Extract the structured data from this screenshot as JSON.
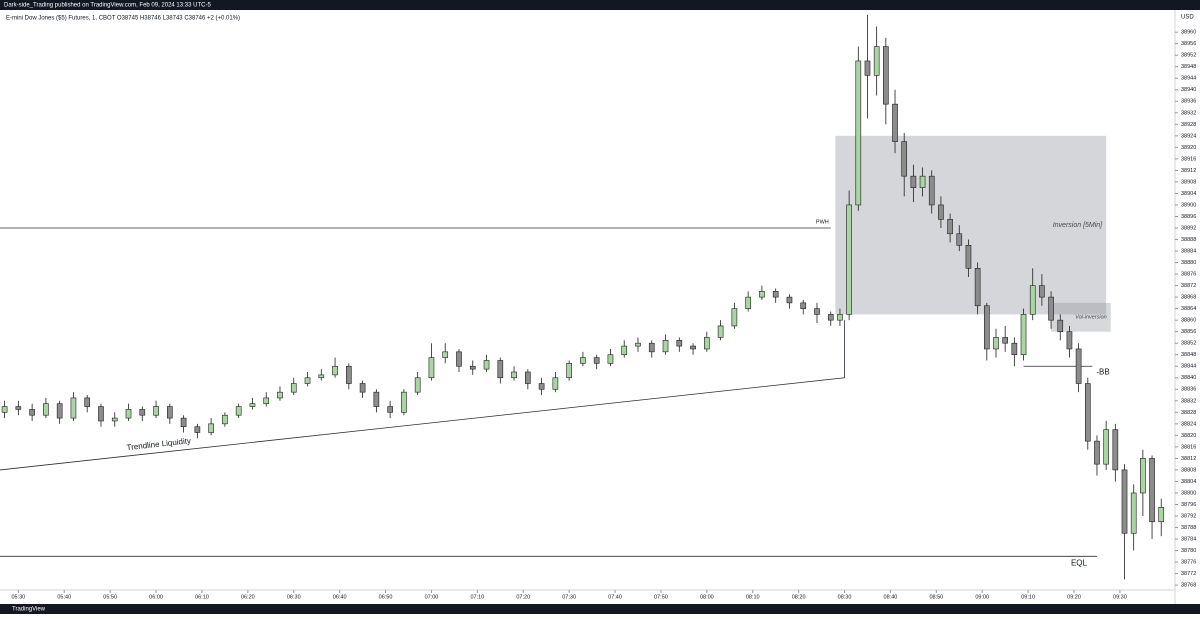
{
  "header": {
    "publisher": "Dark-side_Trading published on TradingView.com, Feb 09, 2024 13:33 UTC-5",
    "symbol": "E-mini Dow Jones ($5) Futures, 1, CBOT  O38745  H38746  L38743  C38746  +2 (+0.01%)",
    "currency": "USD"
  },
  "footer": {
    "brand": "TradingView"
  },
  "chart_data": {
    "type": "candlestick",
    "up_color": "#a8d5a2",
    "down_color": "#8c8c8c",
    "outline_color": "#1e1e1e",
    "xlim": [
      "05:26",
      "09:42"
    ],
    "ylim": [
      38767,
      38967
    ],
    "xticks": [
      "05:30",
      "05:40",
      "05:50",
      "06:00",
      "06:10",
      "06:20",
      "06:30",
      "06:40",
      "06:50",
      "07:00",
      "07:10",
      "07:20",
      "07:30",
      "07:40",
      "07:50",
      "08:00",
      "08:10",
      "08:20",
      "08:30",
      "08:40",
      "08:50",
      "09:00",
      "09:10",
      "09:20",
      "09:30"
    ],
    "yticks": [
      38768,
      38772,
      38776,
      38780,
      38784,
      38788,
      38792,
      38796,
      38800,
      38804,
      38808,
      38812,
      38816,
      38820,
      38824,
      38828,
      38832,
      38836,
      38840,
      38844,
      38848,
      38852,
      38856,
      38860,
      38864,
      38868,
      38872,
      38876,
      38880,
      38884,
      38888,
      38892,
      38896,
      38900,
      38904,
      38908,
      38912,
      38916,
      38920,
      38924,
      38928,
      38932,
      38936,
      38940,
      38944,
      38948,
      38952,
      38956,
      38960
    ],
    "x": [
      "05:27",
      "05:30",
      "05:33",
      "05:36",
      "05:39",
      "05:42",
      "05:45",
      "05:48",
      "05:51",
      "05:54",
      "05:57",
      "06:00",
      "06:03",
      "06:06",
      "06:09",
      "06:12",
      "06:15",
      "06:18",
      "06:21",
      "06:24",
      "06:27",
      "06:30",
      "06:33",
      "06:36",
      "06:39",
      "06:42",
      "06:45",
      "06:48",
      "06:51",
      "06:54",
      "06:57",
      "07:00",
      "07:03",
      "07:06",
      "07:09",
      "07:12",
      "07:15",
      "07:18",
      "07:21",
      "07:24",
      "07:27",
      "07:30",
      "07:33",
      "07:36",
      "07:39",
      "07:42",
      "07:45",
      "07:48",
      "07:51",
      "07:54",
      "07:57",
      "08:00",
      "08:03",
      "08:06",
      "08:09",
      "08:12",
      "08:15",
      "08:18",
      "08:21",
      "08:24",
      "08:27",
      "08:29",
      "08:31",
      "08:33",
      "08:35",
      "08:37",
      "08:39",
      "08:41",
      "08:43",
      "08:45",
      "08:47",
      "08:49",
      "08:51",
      "08:53",
      "08:55",
      "08:57",
      "08:59",
      "09:01",
      "09:03",
      "09:05",
      "09:07",
      "09:09",
      "09:11",
      "09:13",
      "09:15",
      "09:17",
      "09:19",
      "09:21",
      "09:23",
      "09:25",
      "09:27",
      "09:29",
      "09:31",
      "09:33",
      "09:35",
      "09:37",
      "09:39"
    ],
    "open": [
      38828,
      38830,
      38829,
      38827,
      38831,
      38826,
      38833,
      38830,
      38825,
      38826,
      38829,
      38827,
      38830,
      38826,
      38823,
      38821,
      38824,
      38827,
      38830,
      38831,
      38833,
      38835,
      38838,
      38840,
      38841,
      38844,
      38838,
      38835,
      38830,
      38828,
      38835,
      38840,
      38847,
      38849,
      38844,
      38843,
      38846,
      38840,
      38842,
      38838,
      38836,
      38840,
      38845,
      38847,
      38845,
      38848,
      38851,
      38852,
      38849,
      38853,
      38851,
      38850,
      38854,
      38858,
      38864,
      38868,
      38870,
      38868,
      38866,
      38864,
      38862,
      38860,
      38862,
      38900,
      38950,
      38945,
      38955,
      38935,
      38922,
      38910,
      38906,
      38910,
      38900,
      38895,
      38890,
      38886,
      38878,
      38865,
      38850,
      38854,
      38852,
      38848,
      38862,
      38872,
      38868,
      38860,
      38856,
      38850,
      38838,
      38818,
      38810,
      38822,
      38808,
      38786,
      38800,
      38812,
      38790
    ],
    "high": [
      38832,
      38832,
      38831,
      38833,
      38832,
      38835,
      38834,
      38831,
      38828,
      38831,
      38830,
      38832,
      38831,
      38827,
      38824,
      38826,
      38828,
      38831,
      38833,
      38835,
      38837,
      38840,
      38842,
      38843,
      38847,
      38845,
      38839,
      38836,
      38832,
      38836,
      38842,
      38852,
      38852,
      38850,
      38846,
      38848,
      38847,
      38844,
      38843,
      38840,
      38842,
      38846,
      38849,
      38848,
      38850,
      38853,
      38854,
      38853,
      38855,
      38854,
      38852,
      38856,
      38860,
      38866,
      38870,
      38872,
      38871,
      38869,
      38867,
      38866,
      38863,
      38864,
      38905,
      38955,
      38966,
      38962,
      38958,
      38940,
      38925,
      38914,
      38913,
      38912,
      38903,
      38897,
      38893,
      38888,
      38880,
      38866,
      38857,
      38858,
      38854,
      38864,
      38878,
      38876,
      38870,
      38862,
      38858,
      38852,
      38840,
      38820,
      38825,
      38824,
      38810,
      38803,
      38815,
      38813,
      38798
    ],
    "low": [
      38826,
      38827,
      38825,
      38826,
      38824,
      38825,
      38828,
      38823,
      38823,
      38825,
      38825,
      38826,
      38824,
      38821,
      38819,
      38820,
      38823,
      38826,
      38829,
      38830,
      38832,
      38834,
      38837,
      38839,
      38840,
      38836,
      38833,
      38828,
      38826,
      38827,
      38834,
      38839,
      38845,
      38842,
      38841,
      38842,
      38838,
      38839,
      38836,
      38834,
      38835,
      38839,
      38844,
      38843,
      38844,
      38847,
      38849,
      38847,
      38848,
      38849,
      38848,
      38849,
      38853,
      38857,
      38863,
      38867,
      38866,
      38864,
      38862,
      38859,
      38858,
      38858,
      38860,
      38898,
      38930,
      38938,
      38928,
      38918,
      38903,
      38901,
      38903,
      38897,
      38892,
      38887,
      38884,
      38875,
      38862,
      38846,
      38847,
      38849,
      38844,
      38846,
      38860,
      38865,
      38857,
      38853,
      38847,
      38835,
      38815,
      38806,
      38808,
      38804,
      38770,
      38780,
      38792,
      38784,
      38785
    ],
    "close": [
      38830,
      38829,
      38827,
      38831,
      38826,
      38833,
      38830,
      38825,
      38826,
      38829,
      38827,
      38830,
      38826,
      38823,
      38821,
      38824,
      38827,
      38830,
      38831,
      38833,
      38835,
      38838,
      38840,
      38841,
      38844,
      38838,
      38835,
      38830,
      38828,
      38835,
      38840,
      38847,
      38849,
      38844,
      38843,
      38846,
      38840,
      38842,
      38838,
      38836,
      38840,
      38845,
      38847,
      38845,
      38848,
      38851,
      38852,
      38849,
      38853,
      38851,
      38850,
      38854,
      38858,
      38864,
      38868,
      38870,
      38868,
      38866,
      38864,
      38862,
      38860,
      38862,
      38900,
      38950,
      38945,
      38955,
      38935,
      38922,
      38910,
      38906,
      38910,
      38900,
      38895,
      38890,
      38886,
      38878,
      38865,
      38850,
      38854,
      38852,
      38848,
      38862,
      38872,
      38868,
      38860,
      38856,
      38850,
      38838,
      38818,
      38810,
      38822,
      38808,
      38786,
      38800,
      38812,
      38790,
      38795
    ],
    "levels": [
      {
        "label": "PWH",
        "price": 38892,
        "from": "05:26",
        "to": "08:27"
      },
      {
        "label": "-BB",
        "price": 38844,
        "from": "09:09",
        "to": "09:24"
      },
      {
        "label": "EQL",
        "price": 38778,
        "from": "05:26",
        "to": "09:25"
      }
    ],
    "boxes": [
      {
        "label": "Inversion [5Min]",
        "from": "08:28",
        "to": "09:27",
        "price": [
          38862,
          38924
        ]
      },
      {
        "label": "Vol-inversion",
        "from": "09:15",
        "to": "09:28",
        "price": [
          38856,
          38866
        ]
      }
    ],
    "trendline": {
      "label": "Trendline Liquidity",
      "x": [
        "05:26",
        "08:30",
        "08:30"
      ],
      "price": [
        38808,
        38840,
        38860
      ]
    }
  }
}
